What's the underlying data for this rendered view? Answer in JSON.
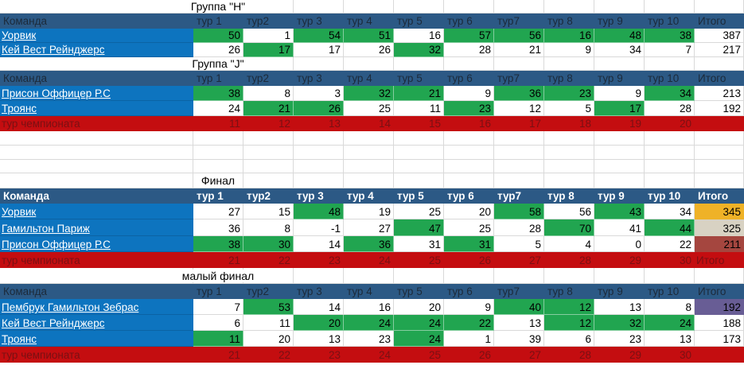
{
  "app": {
    "kind": "spreadsheet-tournament-table",
    "language": "ru"
  },
  "colors": {
    "header_bg": "#2C5985",
    "header_text": "#1C2A3A",
    "header_text_final": "#FFFFFF",
    "team_bg": "#0D74BF",
    "team_text": "#FFFFFF",
    "green": "#21A550",
    "red_bg": "#C40D10",
    "red_text": "#7A1013",
    "gold": "#EFB227",
    "silver": "#D8D2C3",
    "bronze": "#A5463F",
    "purple": "#685D95",
    "grid": "#D9D9D9",
    "bg": "#FFFFFF",
    "cell_text": "#000000"
  },
  "columns": {
    "team": "Команда",
    "rounds": [
      "тур 1",
      "тур2",
      "тур 3",
      "тур 4",
      "тур 5",
      "тур 6",
      "тур7",
      "тур 8",
      "тур 9",
      "тур 10"
    ],
    "total": "Итого"
  },
  "sections": [
    {
      "title": "Группа \"H\"",
      "rows": [
        {
          "name": "Уорвик",
          "cells": [
            {
              "v": 50,
              "hl": true
            },
            {
              "v": 1
            },
            {
              "v": 54,
              "hl": true
            },
            {
              "v": 51,
              "hl": true
            },
            {
              "v": 16
            },
            {
              "v": 57,
              "hl": true
            },
            {
              "v": 56,
              "hl": true
            },
            {
              "v": 16,
              "hl": true
            },
            {
              "v": 48,
              "hl": true
            },
            {
              "v": 38,
              "hl": true
            }
          ],
          "total": {
            "v": 387
          }
        },
        {
          "name": "Кей Вест Рейнджерс",
          "cells": [
            {
              "v": 26
            },
            {
              "v": 17,
              "hl": true
            },
            {
              "v": 17
            },
            {
              "v": 26
            },
            {
              "v": 32,
              "hl": true
            },
            {
              "v": 28
            },
            {
              "v": 21
            },
            {
              "v": 9
            },
            {
              "v": 34
            },
            {
              "v": 7
            }
          ],
          "total": {
            "v": 217
          }
        }
      ]
    },
    {
      "title": "Группа \"J\"",
      "rows": [
        {
          "name": "Присон Оффицер Р.С",
          "cells": [
            {
              "v": 38,
              "hl": true
            },
            {
              "v": 8
            },
            {
              "v": 3
            },
            {
              "v": 32,
              "hl": true
            },
            {
              "v": 21,
              "hl": true
            },
            {
              "v": 9
            },
            {
              "v": 36,
              "hl": true
            },
            {
              "v": 23,
              "hl": true
            },
            {
              "v": 9
            },
            {
              "v": 34,
              "hl": true
            }
          ],
          "total": {
            "v": 213
          }
        },
        {
          "name": "Троянс",
          "cells": [
            {
              "v": 24
            },
            {
              "v": 21,
              "hl": true
            },
            {
              "v": 26,
              "hl": true
            },
            {
              "v": 25
            },
            {
              "v": 11
            },
            {
              "v": 23,
              "hl": true
            },
            {
              "v": 12
            },
            {
              "v": 5
            },
            {
              "v": 17,
              "hl": true
            },
            {
              "v": 28
            }
          ],
          "total": {
            "v": 192
          }
        }
      ],
      "champ": {
        "label": "тур чемпионата",
        "values": [
          11,
          12,
          13,
          14,
          15,
          16,
          17,
          18,
          19,
          20
        ],
        "total_label": ""
      }
    },
    {
      "title": "Финал",
      "rows": [
        {
          "name": "Уорвик",
          "cells": [
            {
              "v": 27
            },
            {
              "v": 15
            },
            {
              "v": 48,
              "hl": true
            },
            {
              "v": 19
            },
            {
              "v": 25
            },
            {
              "v": 20
            },
            {
              "v": 58,
              "hl": true
            },
            {
              "v": 56
            },
            {
              "v": 43,
              "hl": true
            },
            {
              "v": 34
            }
          ],
          "total": {
            "v": 345,
            "bg": "gold"
          }
        },
        {
          "name": "Гамильтон Париж",
          "cells": [
            {
              "v": 36
            },
            {
              "v": 8
            },
            {
              "v": -1
            },
            {
              "v": 27
            },
            {
              "v": 47,
              "hl": true
            },
            {
              "v": 25
            },
            {
              "v": 28
            },
            {
              "v": 70,
              "hl": true
            },
            {
              "v": 41
            },
            {
              "v": 44,
              "hl": true
            }
          ],
          "total": {
            "v": 325,
            "bg": "silver"
          }
        },
        {
          "name": "Присон Оффицер Р.С",
          "cells": [
            {
              "v": 38,
              "hl": true
            },
            {
              "v": 30,
              "hl": true
            },
            {
              "v": 14
            },
            {
              "v": 36,
              "hl": true
            },
            {
              "v": 31
            },
            {
              "v": 31,
              "hl": true
            },
            {
              "v": 5
            },
            {
              "v": 4
            },
            {
              "v": 0
            },
            {
              "v": 22
            }
          ],
          "total": {
            "v": 211,
            "bg": "bronze"
          }
        }
      ],
      "champ": {
        "label": "тур чемпионата",
        "values": [
          21,
          22,
          23,
          24,
          25,
          26,
          27,
          28,
          29,
          30
        ],
        "total_label": "Итого"
      }
    },
    {
      "title": "малый финал",
      "rows": [
        {
          "name": "Пембрук Гамильтон Зебрас",
          "cells": [
            {
              "v": 7
            },
            {
              "v": 53,
              "hl": true
            },
            {
              "v": 14
            },
            {
              "v": 16
            },
            {
              "v": 20
            },
            {
              "v": 9
            },
            {
              "v": 40,
              "hl": true
            },
            {
              "v": 12,
              "hl": true
            },
            {
              "v": 13
            },
            {
              "v": 8
            }
          ],
          "total": {
            "v": 192,
            "bg": "purple"
          }
        },
        {
          "name": "Кей Вест Рейнджерс",
          "cells": [
            {
              "v": 6
            },
            {
              "v": 11
            },
            {
              "v": 20,
              "hl": true
            },
            {
              "v": 24,
              "hl": true
            },
            {
              "v": 24,
              "hl": true
            },
            {
              "v": 22,
              "hl": true
            },
            {
              "v": 13
            },
            {
              "v": 12,
              "hl": true
            },
            {
              "v": 32,
              "hl": true
            },
            {
              "v": 24,
              "hl": true
            }
          ],
          "total": {
            "v": 188
          }
        },
        {
          "name": "Троянс",
          "cells": [
            {
              "v": 11,
              "hl": true
            },
            {
              "v": 20
            },
            {
              "v": 13
            },
            {
              "v": 23
            },
            {
              "v": 24,
              "hl": true
            },
            {
              "v": 1
            },
            {
              "v": 39
            },
            {
              "v": 6
            },
            {
              "v": 23
            },
            {
              "v": 13
            }
          ],
          "total": {
            "v": 173
          }
        }
      ],
      "champ": {
        "label": "тур чемпионата",
        "values": [
          21,
          22,
          23,
          24,
          25,
          26,
          27,
          28,
          29,
          30
        ],
        "total_label": ""
      }
    }
  ]
}
